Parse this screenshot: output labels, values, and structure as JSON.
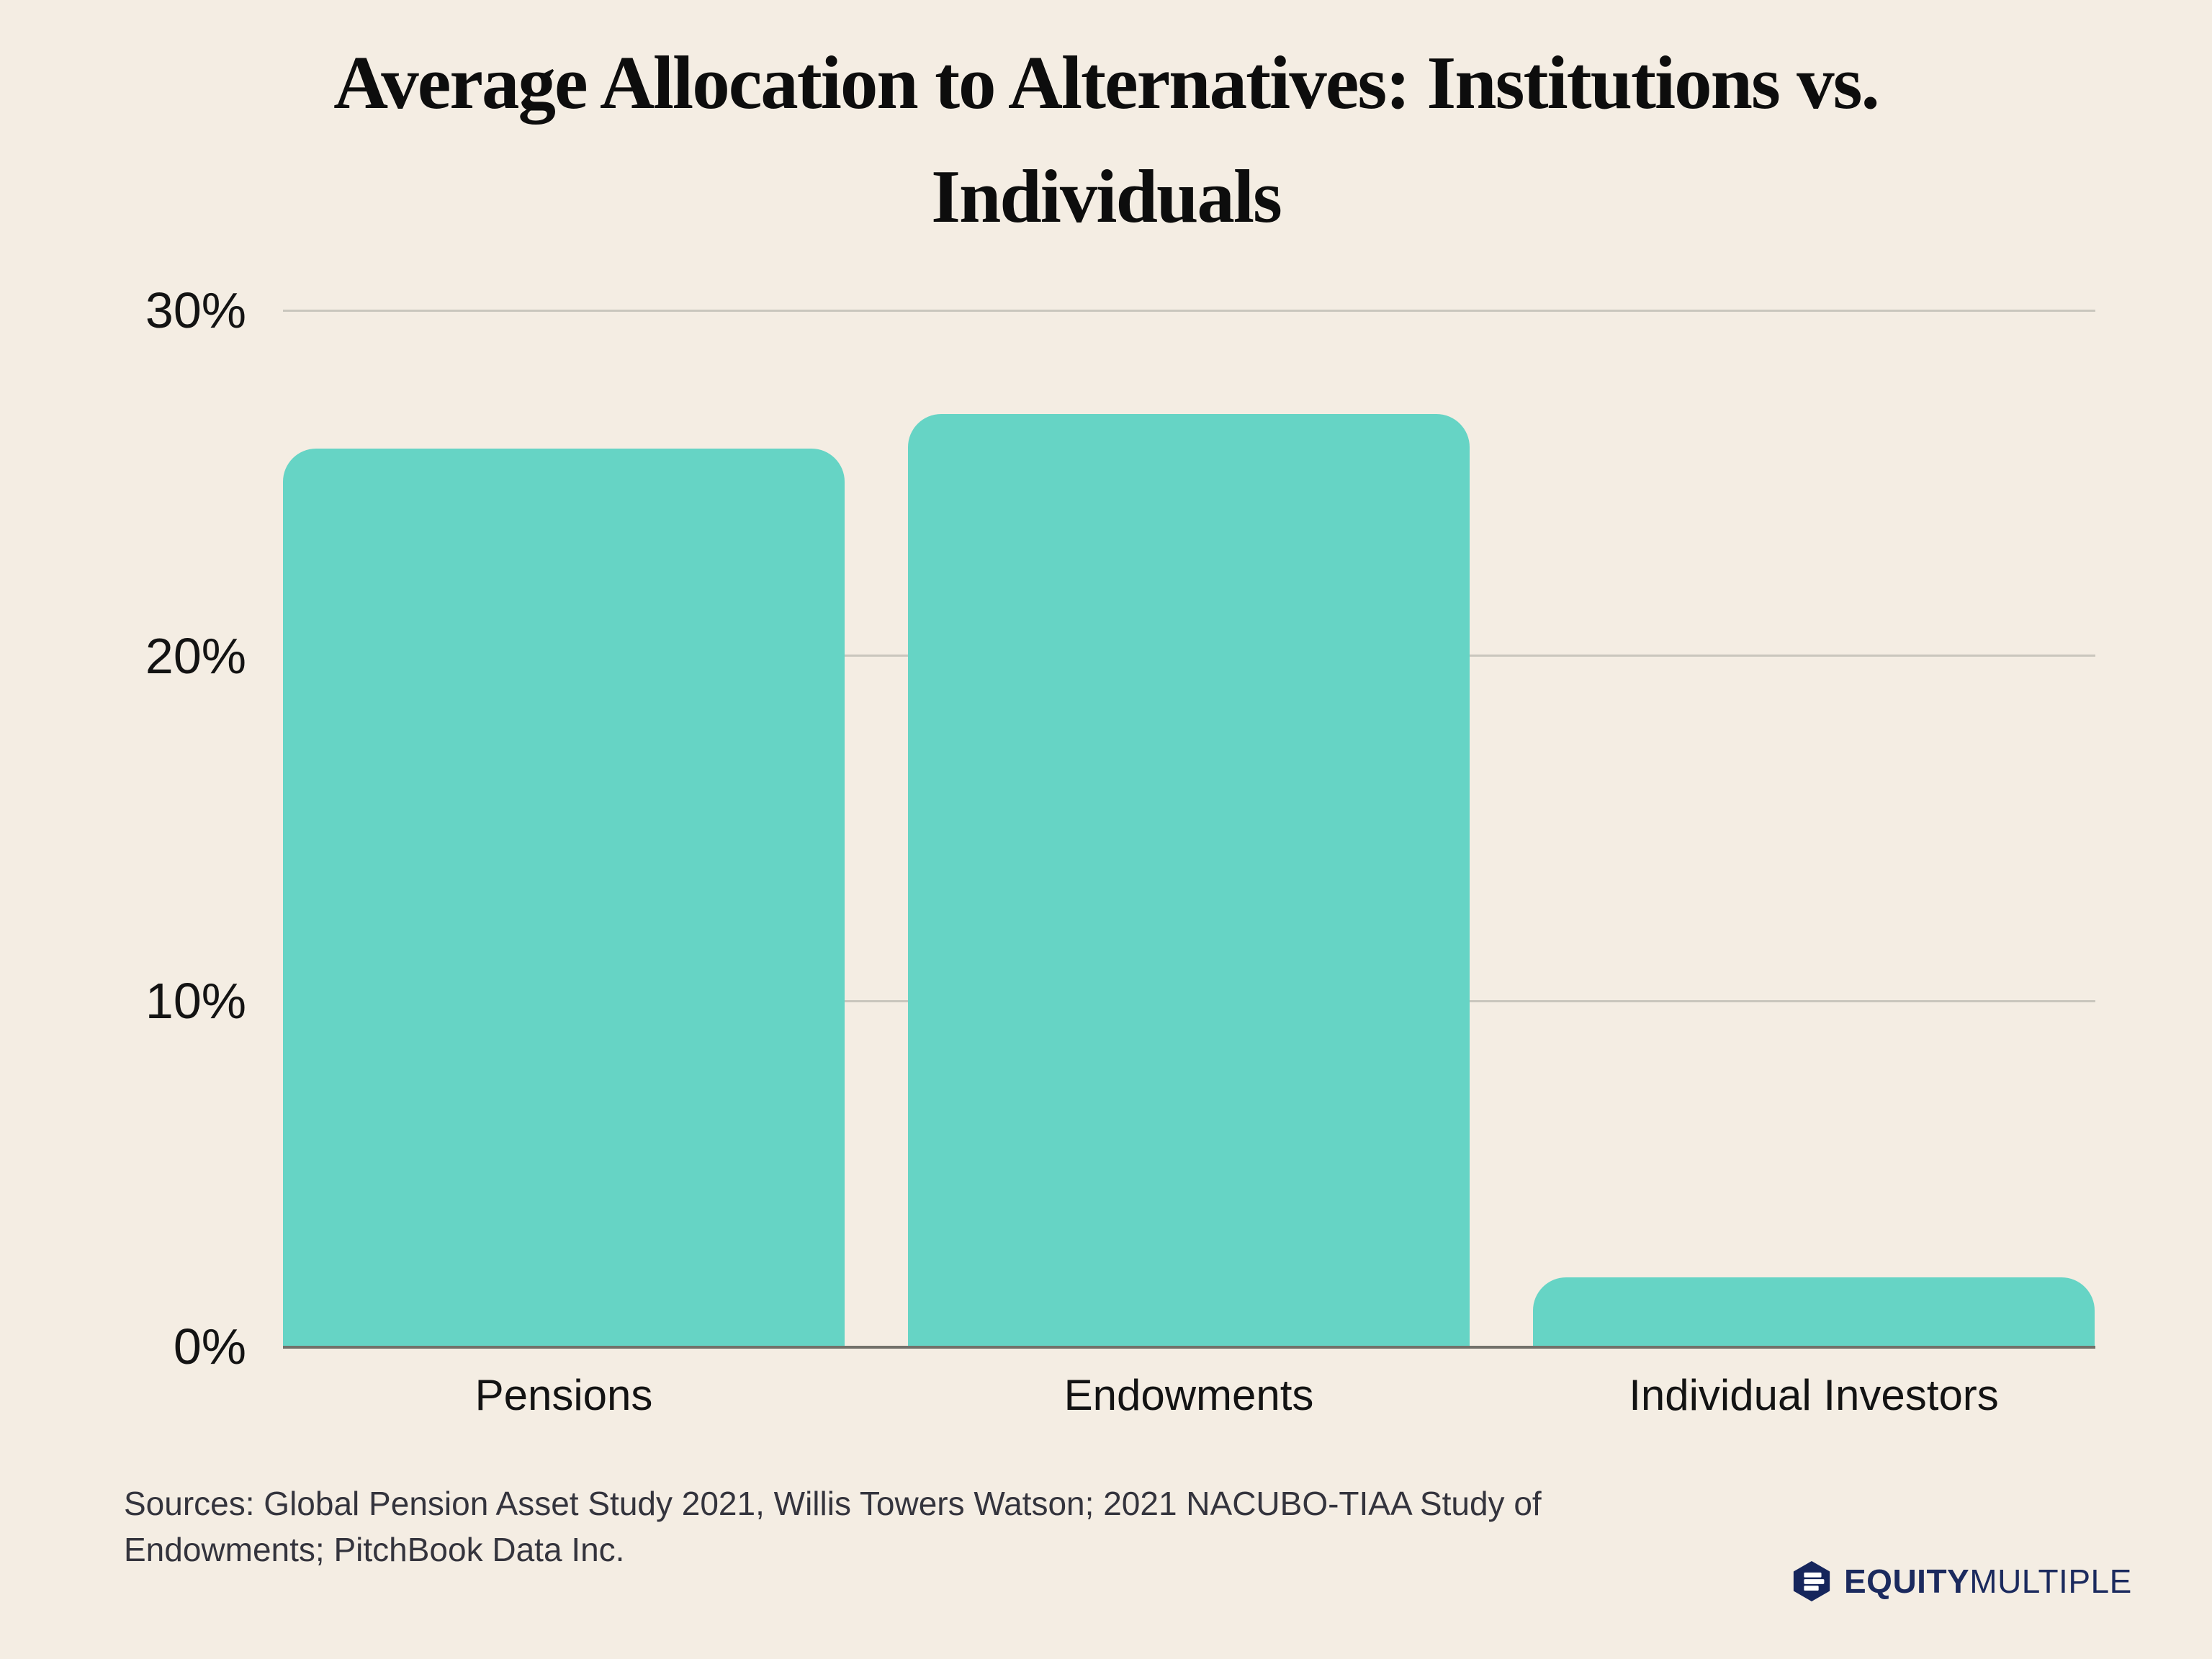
{
  "title": {
    "line1": "Average Allocation to Alternatives: Institutions vs.",
    "line2": "Individuals"
  },
  "chart_data": {
    "type": "bar",
    "title": "Average Allocation to Alternatives: Institutions vs. Individuals",
    "categories": [
      "Pensions",
      "Endowments",
      "Individual Investors"
    ],
    "values": [
      26,
      27,
      2
    ],
    "unit": "%",
    "xlabel": "",
    "ylabel": "",
    "ylim": [
      0,
      30
    ],
    "yticks": [
      {
        "label": "30%",
        "value": 30
      },
      {
        "label": "20%",
        "value": 20
      },
      {
        "label": "10%",
        "value": 10
      },
      {
        "label": "0%",
        "value": 0
      }
    ],
    "grid": true,
    "legend": false,
    "bar_color": "#66D4C5"
  },
  "sources": {
    "line1": "Sources: Global Pension Asset Study 2021, Willis Towers Watson; 2021 NACUBO-TIAA Study of",
    "line2": "Endowments; PitchBook Data Inc."
  },
  "logo": {
    "bold_text": "EQUITY",
    "light_text": "MULTIPLE",
    "icon": "equitymultiple-hexagon-icon"
  },
  "colors": {
    "background": "#F4EDE3",
    "bar": "#66D4C5",
    "gridline": "#C9C6BD",
    "axis_line": "#72716A",
    "title_text": "#0D0D0D",
    "label_text": "#131313",
    "sources_text": "#34343D",
    "logo_navy": "#1B2A5E"
  }
}
